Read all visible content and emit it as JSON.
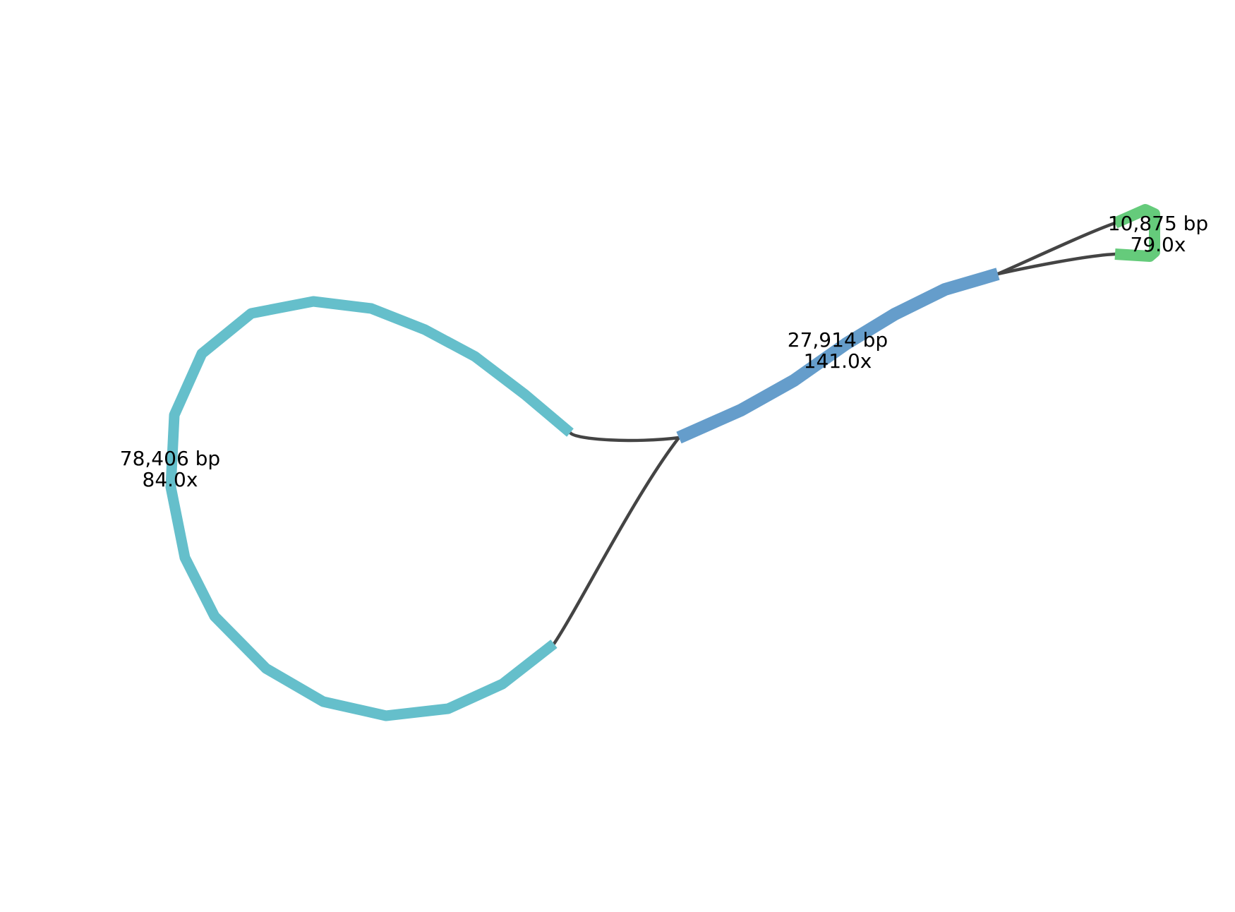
{
  "graph": {
    "edge_color": "#444444",
    "nodes": [
      {
        "id": "contig-78406",
        "length_label": "78,406 bp",
        "depth_label": "84.0x",
        "color": "#65bfcb"
      },
      {
        "id": "contig-27914",
        "length_label": "27,914 bp",
        "depth_label": "141.0x",
        "color": "#659dcb"
      },
      {
        "id": "contig-10875",
        "length_label": "10,875 bp",
        "depth_label": "79.0x",
        "color": "#65cb7b"
      }
    ],
    "edges": [
      {
        "from": "contig-78406",
        "to": "contig-27914"
      },
      {
        "from": "contig-78406",
        "to": "contig-27914"
      },
      {
        "from": "contig-27914",
        "to": "contig-10875"
      },
      {
        "from": "contig-27914",
        "to": "contig-10875"
      }
    ]
  }
}
